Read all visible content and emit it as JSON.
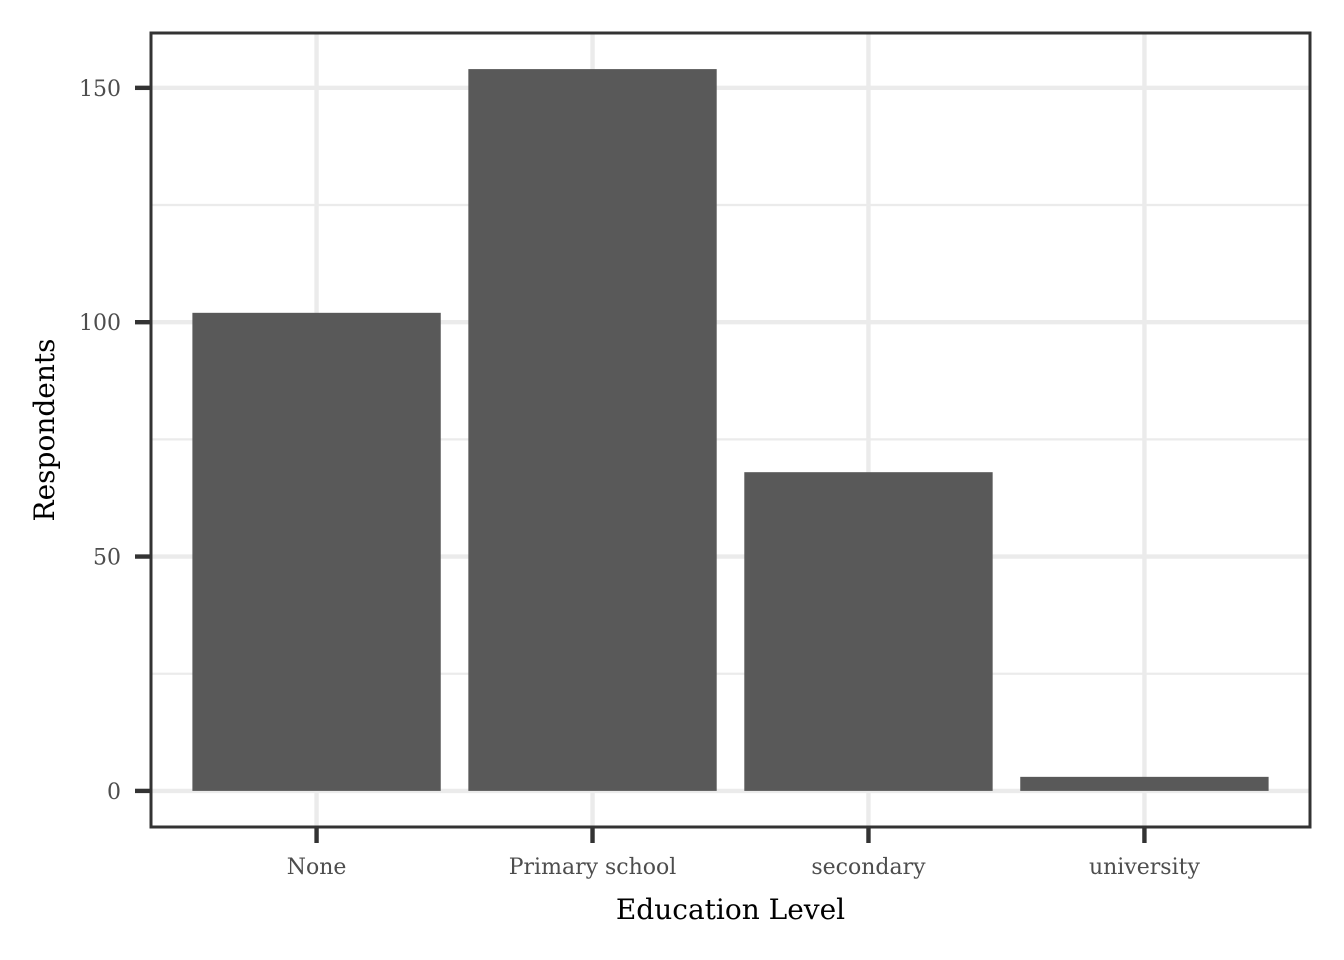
{
  "chart_data": {
    "type": "bar",
    "title": "",
    "xlabel": "Education Level",
    "ylabel": "Respondents",
    "categories": [
      "None",
      "Primary school",
      "secondary",
      "university"
    ],
    "values": [
      102,
      154,
      68,
      3
    ],
    "ylim": [
      -7.7,
      161.7
    ],
    "yticks": [
      0,
      50,
      100,
      150
    ],
    "yticks_minor": [
      25,
      75,
      125
    ],
    "yticks_labels": [
      "0",
      "50",
      "100",
      "150"
    ],
    "grid": true,
    "legend": "none",
    "colors": {
      "bar": "#595959",
      "grid": "#ebebeb",
      "panel_border": "#333333",
      "tick": "#333333",
      "tick_label": "#4d4d4d",
      "axis_title": "#000000",
      "background": "#ffffff"
    }
  }
}
